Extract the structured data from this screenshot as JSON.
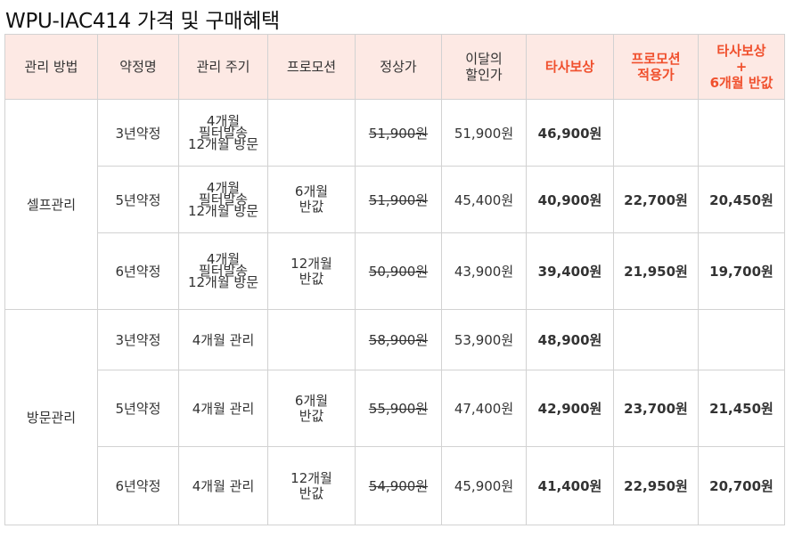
{
  "title": "WPU-IAC414 가격 및 구매혜택",
  "headers": {
    "method": "관리 방법",
    "contract": "약정명",
    "cycle": "관리 주기",
    "promo": "프로모션",
    "list": "정상가",
    "discount": "이달의\n할인가",
    "trade": "타사보상",
    "promo_applied": "프로모션\n적용가",
    "trade_half": "타사보상\n+\n6개월 반값"
  },
  "groups": {
    "self": "셀프관리",
    "visit": "방문관리"
  },
  "rows": [
    {
      "contract": "3년약정",
      "cycle": "4개월\n필터발송\n12개월 방문",
      "promo": "",
      "list": "51,900원",
      "discount": "51,900원",
      "trade": "46,900원",
      "promo_price": "",
      "trade_half": ""
    },
    {
      "contract": "5년약정",
      "cycle": "4개월\n필터발송\n12개월 방문",
      "promo": "6개월\n반값",
      "list": "51,900원",
      "discount": "45,400원",
      "trade": "40,900원",
      "promo_price": "22,700원",
      "trade_half": "20,450원"
    },
    {
      "contract": "6년약정",
      "cycle": "4개월\n필터발송\n12개월 방문",
      "promo": "12개월\n반값",
      "list": "50,900원",
      "discount": "43,900원",
      "trade": "39,400원",
      "promo_price": "21,950원",
      "trade_half": "19,700원"
    },
    {
      "contract": "3년약정",
      "cycle": "4개월 관리",
      "promo": "",
      "list": "58,900원",
      "discount": "53,900원",
      "trade": "48,900원",
      "promo_price": "",
      "trade_half": ""
    },
    {
      "contract": "5년약정",
      "cycle": "4개월 관리",
      "promo": "6개월\n반값",
      "list": "55,900원",
      "discount": "47,400원",
      "trade": "42,900원",
      "promo_price": "23,700원",
      "trade_half": "21,450원"
    },
    {
      "contract": "6년약정",
      "cycle": "4개월 관리",
      "promo": "12개월\n반값",
      "list": "54,900원",
      "discount": "45,900원",
      "trade": "41,400원",
      "promo_price": "22,950원",
      "trade_half": "20,700원"
    }
  ],
  "colors": {
    "header_bg": "#fde9e4",
    "accent_red": "#f0502d",
    "border": "#d2d2d2"
  }
}
